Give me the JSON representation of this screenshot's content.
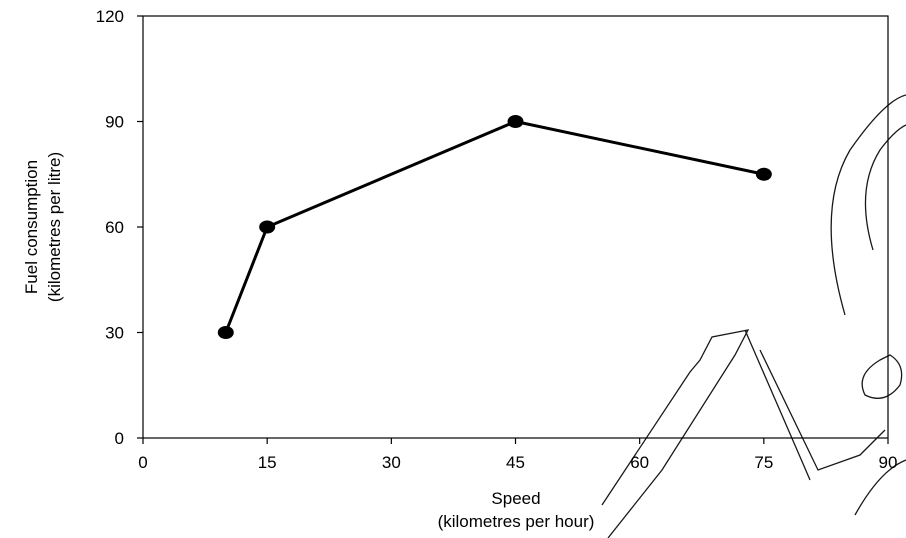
{
  "chart_data": {
    "type": "line",
    "x": [
      10,
      15,
      45,
      75
    ],
    "series": [
      {
        "values": [
          30,
          60,
          90,
          75
        ]
      }
    ],
    "xlim": [
      0,
      90
    ],
    "ylim": [
      0,
      120
    ],
    "x_ticks": [
      0,
      15,
      30,
      45,
      60,
      75,
      90
    ],
    "y_ticks": [
      0,
      30,
      60,
      90,
      120
    ],
    "x_tick_labels": [
      "0",
      "15",
      "30",
      "45",
      "60",
      "75",
      "90"
    ],
    "y_tick_labels": [
      "0",
      "30",
      "60",
      "90",
      "120"
    ],
    "title": "",
    "xlabel": [
      "Speed",
      "(kilometres per hour)"
    ],
    "ylabel": [
      "Fuel consumption",
      "(kilometres per litre)"
    ],
    "grid": false,
    "legend": "none",
    "colors": {
      "line": "#000000",
      "marker": "#000000",
      "axis": "#000000"
    }
  }
}
